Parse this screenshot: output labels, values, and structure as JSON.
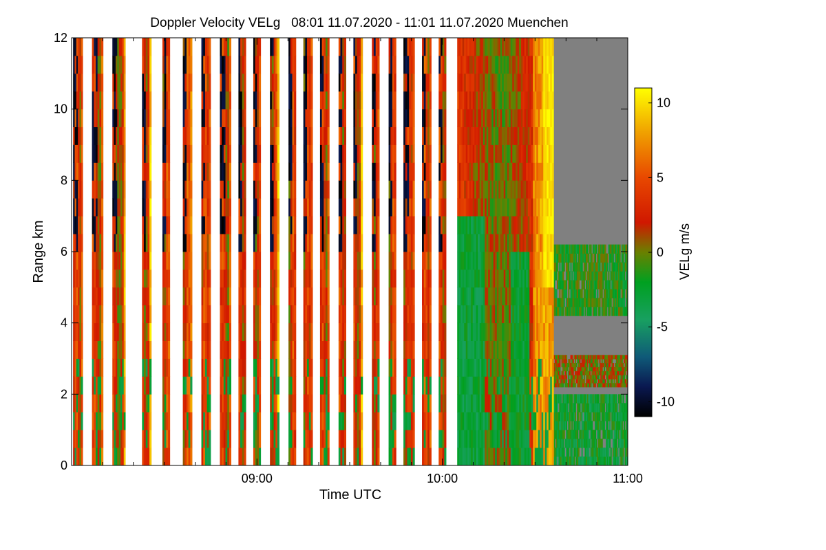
{
  "chart_data": {
    "type": "heatmap",
    "title": "Doppler Velocity VELg   08:01 11.07.2020 - 11:01 11.07.2020 Muenchen",
    "xlabel": "Time UTC",
    "ylabel": "Range km",
    "xlim_hours": [
      8.0,
      11.0
    ],
    "ylim": [
      0,
      12
    ],
    "x_ticks": [
      {
        "value": 9.0,
        "label": "09:00"
      },
      {
        "value": 10.0,
        "label": "10:00"
      },
      {
        "value": 11.0,
        "label": "11:00"
      }
    ],
    "x_minor_ticks": [
      8.167,
      8.333,
      8.5,
      8.667,
      8.833,
      9.167,
      9.333,
      9.5,
      9.667,
      9.833,
      10.167,
      10.333,
      10.5,
      10.667,
      10.833
    ],
    "y_ticks": [
      {
        "value": 0,
        "label": "0"
      },
      {
        "value": 2,
        "label": "2"
      },
      {
        "value": 4,
        "label": "4"
      },
      {
        "value": 6,
        "label": "6"
      },
      {
        "value": 8,
        "label": "8"
      },
      {
        "value": 10,
        "label": "10"
      },
      {
        "value": 12,
        "label": "12"
      }
    ],
    "colorbar": {
      "label": "VELg m/s",
      "range": [
        -11,
        11
      ],
      "ticks": [
        {
          "value": 10,
          "label": "10"
        },
        {
          "value": 5,
          "label": "5"
        },
        {
          "value": 0,
          "label": "0"
        },
        {
          "value": -5,
          "label": "-5"
        },
        {
          "value": -10,
          "label": "-10"
        }
      ],
      "colors": [
        {
          "value": -11,
          "color": "#000000"
        },
        {
          "value": -9,
          "color": "#0a1850"
        },
        {
          "value": -7,
          "color": "#0f5a78"
        },
        {
          "value": -4.5,
          "color": "#18a060"
        },
        {
          "value": -2,
          "color": "#00a020"
        },
        {
          "value": 0,
          "color": "#6a8000"
        },
        {
          "value": 2,
          "color": "#d01800"
        },
        {
          "value": 5,
          "color": "#e84800"
        },
        {
          "value": 8,
          "color": "#f0a000"
        },
        {
          "value": 11,
          "color": "#ffff00"
        }
      ]
    },
    "background_color": "#808080",
    "scan_blocks": [
      {
        "start": 8.008,
        "end": 8.06,
        "v_mean": 3.0,
        "top": 12,
        "neg_top": true
      },
      {
        "start": 8.11,
        "end": 8.17,
        "v_mean": 2.5,
        "top": 12,
        "neg_top": true
      },
      {
        "start": 8.22,
        "end": 8.29,
        "v_mean": 2.5,
        "top": 12,
        "neg_top": true
      },
      {
        "start": 8.38,
        "end": 8.43,
        "v_mean": 3.0,
        "top": 12,
        "neg_top": true
      },
      {
        "start": 8.49,
        "end": 8.53,
        "v_mean": 3.5,
        "top": 12,
        "neg_top": true
      },
      {
        "start": 8.6,
        "end": 8.65,
        "v_mean": 3.5,
        "top": 12,
        "neg_top": true
      },
      {
        "start": 8.7,
        "end": 8.75,
        "v_mean": 3.0,
        "top": 12,
        "neg_top": true
      },
      {
        "start": 8.8,
        "end": 8.86,
        "v_mean": 2.5,
        "top": 12,
        "neg_top": true
      },
      {
        "start": 8.9,
        "end": 8.94,
        "v_mean": 3.0,
        "top": 12,
        "neg_top": true
      },
      {
        "start": 8.98,
        "end": 9.02,
        "v_mean": 3.0,
        "top": 12,
        "neg_top": true
      },
      {
        "start": 9.07,
        "end": 9.12,
        "v_mean": 3.5,
        "top": 12,
        "neg_top": true
      },
      {
        "start": 9.17,
        "end": 9.21,
        "v_mean": 3.0,
        "top": 12,
        "neg_top": true
      },
      {
        "start": 9.25,
        "end": 9.3,
        "v_mean": 2.5,
        "top": 12,
        "neg_top": true
      },
      {
        "start": 9.34,
        "end": 9.39,
        "v_mean": 2.5,
        "top": 12,
        "neg_top": true
      },
      {
        "start": 9.44,
        "end": 9.48,
        "v_mean": 3.0,
        "top": 12,
        "neg_top": true
      },
      {
        "start": 9.52,
        "end": 9.57,
        "v_mean": 3.0,
        "top": 12,
        "neg_top": true
      },
      {
        "start": 9.62,
        "end": 9.66,
        "v_mean": 3.0,
        "top": 12,
        "neg_top": true
      },
      {
        "start": 9.71,
        "end": 9.75,
        "v_mean": 3.0,
        "top": 12,
        "neg_top": true
      },
      {
        "start": 9.79,
        "end": 9.85,
        "v_mean": 2.5,
        "top": 12,
        "neg_top": true
      },
      {
        "start": 9.89,
        "end": 9.94,
        "v_mean": 3.0,
        "top": 12,
        "neg_top": true
      },
      {
        "start": 9.98,
        "end": 10.02,
        "v_mean": 3.0,
        "top": 12,
        "neg_top": true
      },
      {
        "start": 10.08,
        "end": 10.6,
        "v_mean": 2.0,
        "top": 12,
        "neg_top": false
      }
    ],
    "clear_air_region": {
      "start": 10.6,
      "end": 11.02,
      "layers": [
        {
          "from": 0,
          "to": 2,
          "v_mean": -2.5
        },
        {
          "from": 2.2,
          "to": 3.1,
          "v_mean": 0.5
        },
        {
          "from": 4.2,
          "to": 6.2,
          "v_mean": -1.5
        }
      ]
    }
  }
}
